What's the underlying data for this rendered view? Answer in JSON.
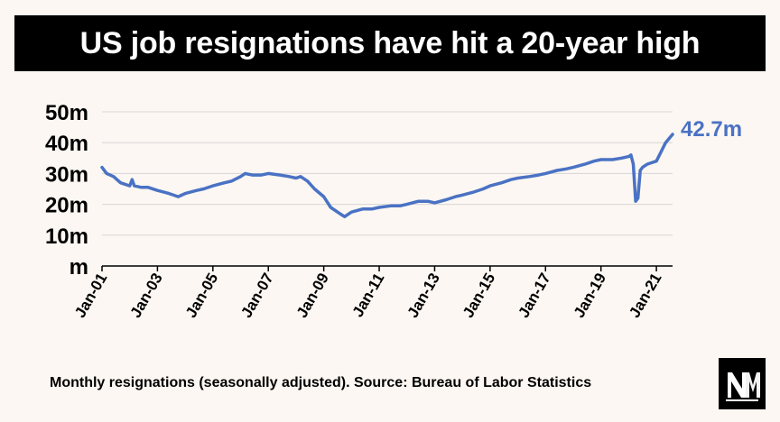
{
  "title": "US job resignations have hit a 20-year high",
  "source_note": "Monthly resignations (seasonally adjusted). Source: Bureau of Labor Statistics",
  "logo_name": "NM",
  "colors": {
    "line": "#4a72c4",
    "grid": "#d6d6d6",
    "axis": "#000000",
    "background": "#fcf7f2"
  },
  "chart_data": {
    "type": "line",
    "ylim": [
      0,
      50
    ],
    "y_ticks": [
      {
        "value": 0,
        "label": "m"
      },
      {
        "value": 10,
        "label": "10m"
      },
      {
        "value": 20,
        "label": "20m"
      },
      {
        "value": 30,
        "label": "30m"
      },
      {
        "value": 40,
        "label": "40m"
      },
      {
        "value": 50,
        "label": "50m"
      }
    ],
    "x_ticks": [
      "Jan-01",
      "Jan-03",
      "Jan-05",
      "Jan-07",
      "Jan-09",
      "Jan-11",
      "Jan-13",
      "Jan-15",
      "Jan-17",
      "Jan-19",
      "Jan-21"
    ],
    "end_label": "42.7m",
    "grid": true,
    "series": [
      {
        "x": [
          "2001-01",
          "2001-03",
          "2001-06",
          "2001-09",
          "2002-01",
          "2002-02",
          "2002-03",
          "2002-06",
          "2002-09",
          "2003-01",
          "2003-06",
          "2003-10",
          "2004-01",
          "2004-06",
          "2004-09",
          "2005-01",
          "2005-06",
          "2005-09",
          "2006-01",
          "2006-03",
          "2006-06",
          "2006-10",
          "2007-01",
          "2007-06",
          "2007-10",
          "2008-01",
          "2008-03",
          "2008-06",
          "2008-09",
          "2009-01",
          "2009-04",
          "2009-08",
          "2009-10",
          "2010-01",
          "2010-06",
          "2010-10",
          "2011-01",
          "2011-06",
          "2011-10",
          "2012-01",
          "2012-06",
          "2012-10",
          "2013-01",
          "2013-06",
          "2013-10",
          "2014-01",
          "2014-06",
          "2014-10",
          "2015-01",
          "2015-06",
          "2015-10",
          "2016-01",
          "2016-06",
          "2016-10",
          "2017-01",
          "2017-06",
          "2017-10",
          "2018-01",
          "2018-06",
          "2018-10",
          "2019-01",
          "2019-06",
          "2019-10",
          "2020-01",
          "2020-02",
          "2020-03",
          "2020-04",
          "2020-05",
          "2020-06",
          "2020-07",
          "2020-09",
          "2020-11",
          "2021-01",
          "2021-03",
          "2021-05",
          "2021-08"
        ],
        "y": [
          32,
          30,
          29,
          27,
          26,
          28,
          26,
          25.5,
          25.5,
          24.5,
          23.5,
          22.5,
          23.5,
          24.5,
          25,
          26,
          27,
          27.5,
          29,
          30,
          29.5,
          29.5,
          30,
          29.5,
          29,
          28.5,
          29,
          27.5,
          25,
          22.5,
          19,
          17,
          16,
          17.5,
          18.5,
          18.5,
          19,
          19.5,
          19.5,
          20,
          21,
          21,
          20.5,
          21.5,
          22.5,
          23,
          24,
          25,
          26,
          27,
          28,
          28.5,
          29,
          29.5,
          30,
          31,
          31.5,
          32,
          33,
          34,
          34.5,
          34.5,
          35,
          35.5,
          36,
          33,
          21,
          22,
          31,
          32,
          33,
          33.5,
          34,
          37,
          40,
          42.7
        ]
      }
    ]
  }
}
